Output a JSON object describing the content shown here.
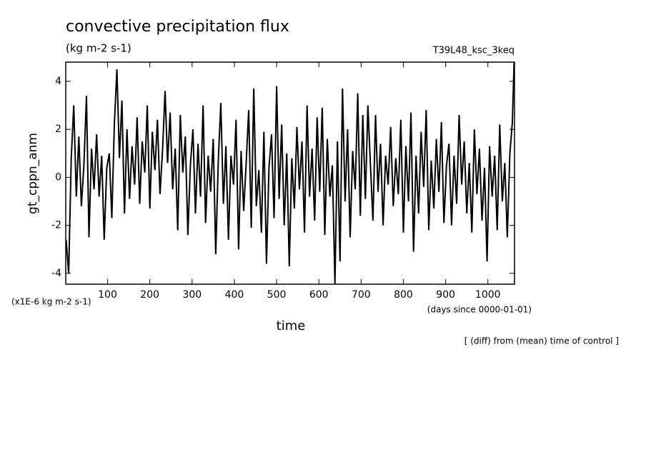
{
  "chart_data": {
    "type": "line",
    "title": "convective precipitation flux",
    "subtitle": "(kg m-2 s-1)",
    "run_label": "T39L48_ksc_3keq",
    "y_label": "gt_cppn_anm",
    "y_unit": "(x1E-6 kg m-2 s-1)",
    "x_label": "time",
    "x_unit": "(days since 0000-01-01)",
    "note": "[ (diff) from (mean) time of control ]",
    "xlim": [
      1,
      1063
    ],
    "ylim": [
      -4.45,
      4.8
    ],
    "xticks": [
      100,
      200,
      300,
      400,
      500,
      600,
      700,
      800,
      900,
      1000
    ],
    "yticks": [
      -4,
      -2,
      0,
      2,
      4
    ],
    "color": "#000000",
    "x": [
      2,
      8,
      14,
      20,
      26,
      32,
      38,
      44,
      50,
      56,
      62,
      68,
      74,
      80,
      86,
      92,
      98,
      104,
      110,
      116,
      122,
      128,
      134,
      140,
      146,
      152,
      158,
      164,
      170,
      176,
      182,
      188,
      194,
      200,
      206,
      212,
      218,
      224,
      230,
      236,
      242,
      248,
      254,
      260,
      266,
      272,
      278,
      284,
      290,
      296,
      302,
      308,
      314,
      320,
      326,
      332,
      338,
      344,
      350,
      356,
      362,
      368,
      374,
      380,
      386,
      392,
      398,
      404,
      410,
      416,
      422,
      428,
      434,
      440,
      446,
      452,
      458,
      464,
      470,
      476,
      482,
      488,
      494,
      500,
      506,
      512,
      518,
      524,
      530,
      536,
      542,
      548,
      554,
      560,
      566,
      572,
      578,
      584,
      590,
      596,
      602,
      608,
      614,
      620,
      626,
      632,
      638,
      644,
      650,
      656,
      662,
      668,
      674,
      680,
      686,
      692,
      698,
      704,
      710,
      716,
      722,
      728,
      734,
      740,
      746,
      752,
      758,
      764,
      770,
      776,
      782,
      788,
      794,
      800,
      806,
      812,
      818,
      824,
      830,
      836,
      842,
      848,
      854,
      860,
      866,
      872,
      878,
      884,
      890,
      896,
      902,
      908,
      914,
      920,
      926,
      932,
      938,
      944,
      950,
      956,
      962,
      968,
      974,
      980,
      986,
      992,
      998,
      1004,
      1010,
      1016,
      1022,
      1028,
      1034,
      1040,
      1046,
      1052,
      1058,
      1062
    ],
    "values": [
      -2.6,
      -4.0,
      0.8,
      3.0,
      -0.8,
      1.7,
      -1.2,
      0.5,
      3.4,
      -2.5,
      1.2,
      -0.5,
      1.8,
      -0.8,
      0.9,
      -2.6,
      0.4,
      1.0,
      -1.7,
      2.2,
      4.5,
      0.8,
      3.2,
      -1.5,
      2.0,
      -0.9,
      1.3,
      -0.3,
      2.5,
      -1.1,
      1.5,
      0.2,
      3.0,
      -1.3,
      1.9,
      0.3,
      2.4,
      -0.7,
      1.1,
      3.6,
      0.6,
      2.7,
      -0.5,
      1.2,
      -2.2,
      2.6,
      0.2,
      1.7,
      -2.4,
      0.5,
      2.0,
      -1.5,
      1.4,
      -0.8,
      3.0,
      -1.9,
      0.9,
      -0.6,
      1.6,
      -3.2,
      0.7,
      3.1,
      -1.1,
      1.3,
      -2.6,
      0.9,
      -0.3,
      2.4,
      -3.0,
      1.1,
      -1.4,
      0.6,
      2.8,
      -2.1,
      3.7,
      -1.2,
      0.3,
      -2.3,
      1.9,
      -3.6,
      0.4,
      1.8,
      -1.7,
      3.8,
      -0.9,
      2.2,
      -2.0,
      1.0,
      -3.7,
      0.8,
      -1.3,
      2.1,
      -0.5,
      1.5,
      -2.3,
      3.0,
      -0.8,
      1.2,
      -1.8,
      2.5,
      -0.6,
      2.9,
      -2.4,
      1.6,
      -0.8,
      0.5,
      -4.45,
      1.5,
      -3.5,
      3.7,
      -1.0,
      2.0,
      -2.5,
      1.1,
      -0.5,
      3.5,
      -1.6,
      2.6,
      -0.9,
      3.0,
      0.5,
      -1.8,
      2.6,
      -0.6,
      1.4,
      -2.0,
      0.9,
      -0.3,
      2.1,
      -1.2,
      0.8,
      -0.7,
      2.4,
      -2.3,
      1.3,
      -1.0,
      2.7,
      -3.1,
      0.9,
      -1.5,
      1.9,
      -0.4,
      2.8,
      -2.2,
      0.7,
      -1.3,
      1.6,
      -0.6,
      2.3,
      -1.9,
      0.5,
      1.4,
      -2.0,
      0.9,
      -1.1,
      2.6,
      -0.3,
      1.5,
      -1.5,
      0.6,
      -2.3,
      2.0,
      -0.7,
      1.2,
      -1.8,
      0.4,
      -3.5,
      1.3,
      -0.8,
      0.9,
      -2.2,
      2.2,
      -1.0,
      0.6,
      -2.5,
      1.0,
      2.3,
      4.8
    ]
  }
}
